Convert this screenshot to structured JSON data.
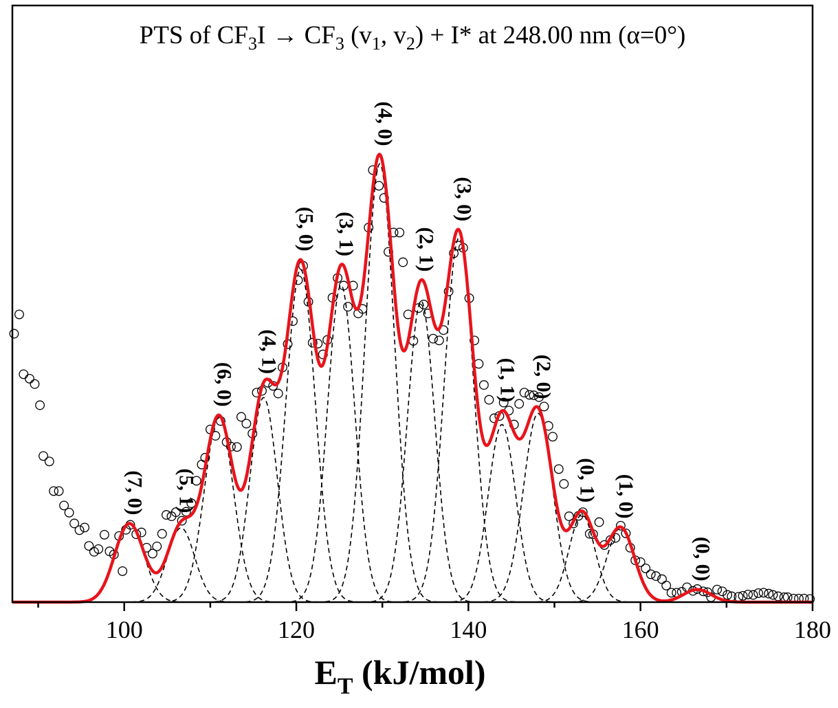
{
  "chart_data": {
    "type": "line",
    "title": {
      "prefix": "PTS  of   CF",
      "sub1": "3",
      "part2": "I",
      "arrow": "→",
      "part3": " CF",
      "sub2": "3",
      "part4": " (v",
      "sub3": "1",
      "part5": ", v",
      "sub4": "2",
      "part6": ") + I*  at 248.00 nm   (α=0°)"
    },
    "xlabel": {
      "main": "E",
      "sub": "T",
      "rest": " (kJ/mol)"
    },
    "ylabel": "",
    "xlim": [
      87,
      180
    ],
    "ylim": [
      0,
      1.0
    ],
    "x_ticks": [
      100,
      120,
      140,
      160,
      180
    ],
    "x_minor_step": 10,
    "y_ticks": [],
    "grid": false,
    "colors": {
      "fit": "#e8141b",
      "components": "#000000",
      "data": "#000000",
      "frame": "#000000"
    },
    "components": [
      {
        "label": "(7, 0)",
        "center": 100.6,
        "amp": 0.175,
        "sigma": 1.7
      },
      {
        "label": "(5, 1)",
        "center": 106.6,
        "amp": 0.165,
        "sigma": 1.6
      },
      {
        "label": "(6, 0)",
        "center": 111.0,
        "amp": 0.41,
        "sigma": 1.7
      },
      {
        "label": "(4, 1)",
        "center": 116.2,
        "amp": 0.455,
        "sigma": 1.6
      },
      {
        "label": "(5, 0)",
        "center": 120.5,
        "amp": 0.74,
        "sigma": 1.7
      },
      {
        "label": "(3, 1)",
        "center": 125.2,
        "amp": 0.705,
        "sigma": 1.6
      },
      {
        "label": "(4, 0)",
        "center": 129.7,
        "amp": 0.975,
        "sigma": 1.7
      },
      {
        "label": "(2, 1)",
        "center": 134.5,
        "amp": 0.67,
        "sigma": 1.6
      },
      {
        "label": "(3, 0)",
        "center": 138.9,
        "amp": 0.81,
        "sigma": 1.7
      },
      {
        "label": "(1, 1)",
        "center": 143.9,
        "amp": 0.395,
        "sigma": 1.6
      },
      {
        "label": "(2, 0)",
        "center": 148.1,
        "amp": 0.42,
        "sigma": 1.7
      },
      {
        "label": "(0, 1)",
        "center": 153.2,
        "amp": 0.195,
        "sigma": 1.5
      },
      {
        "label": "(1, 0)",
        "center": 157.7,
        "amp": 0.165,
        "sigma": 1.6
      },
      {
        "label": "(0, 0)",
        "center": 166.6,
        "amp": 0.028,
        "sigma": 1.6
      }
    ],
    "data_points": [
      [
        87.2,
        0.597
      ],
      [
        87.8,
        0.64
      ],
      [
        88.3,
        0.507
      ],
      [
        89.0,
        0.497
      ],
      [
        89.6,
        0.485
      ],
      [
        90.2,
        0.438
      ],
      [
        90.6,
        0.325
      ],
      [
        91.3,
        0.313
      ],
      [
        91.8,
        0.247
      ],
      [
        92.4,
        0.247
      ],
      [
        93.0,
        0.215
      ],
      [
        93.6,
        0.199
      ],
      [
        94.2,
        0.175
      ],
      [
        94.8,
        0.16
      ],
      [
        95.4,
        0.166
      ],
      [
        95.9,
        0.125
      ],
      [
        96.5,
        0.112
      ],
      [
        97.0,
        0.118
      ],
      [
        97.7,
        0.15
      ],
      [
        98.3,
        0.113
      ],
      [
        98.8,
        0.106
      ],
      [
        99.4,
        0.147
      ],
      [
        99.8,
        0.069
      ],
      [
        100.2,
        0.161
      ],
      [
        100.7,
        0.172
      ],
      [
        101.4,
        0.151
      ],
      [
        102.0,
        0.155
      ],
      [
        102.6,
        0.121
      ],
      [
        103.3,
        0.108
      ],
      [
        103.8,
        0.124
      ],
      [
        104.4,
        0.152
      ],
      [
        104.9,
        0.194
      ],
      [
        105.5,
        0.191
      ],
      [
        106.0,
        0.2
      ],
      [
        106.7,
        0.181
      ],
      [
        107.2,
        0.201
      ],
      [
        107.8,
        0.22
      ],
      [
        108.4,
        0.27
      ],
      [
        109.0,
        0.306
      ],
      [
        109.4,
        0.321
      ],
      [
        110.0,
        0.384
      ],
      [
        110.6,
        0.37
      ],
      [
        111.2,
        0.403
      ],
      [
        111.9,
        0.356
      ],
      [
        112.4,
        0.346
      ],
      [
        113.1,
        0.345
      ],
      [
        113.6,
        0.412
      ],
      [
        114.2,
        0.397
      ],
      [
        114.9,
        0.375
      ],
      [
        115.4,
        0.466
      ],
      [
        116.0,
        0.47
      ],
      [
        116.7,
        0.488
      ],
      [
        117.3,
        0.481
      ],
      [
        117.9,
        0.464
      ],
      [
        118.4,
        0.522
      ],
      [
        119.0,
        0.574
      ],
      [
        119.6,
        0.625
      ],
      [
        120.2,
        0.716
      ],
      [
        120.8,
        0.748
      ],
      [
        121.4,
        0.668
      ],
      [
        121.9,
        0.577
      ],
      [
        122.5,
        0.575
      ],
      [
        123.1,
        0.551
      ],
      [
        123.6,
        0.583
      ],
      [
        124.2,
        0.677
      ],
      [
        124.8,
        0.721
      ],
      [
        125.5,
        0.704
      ],
      [
        126.0,
        0.657
      ],
      [
        126.6,
        0.704
      ],
      [
        127.2,
        0.642
      ],
      [
        127.7,
        0.652
      ],
      [
        128.4,
        0.833
      ],
      [
        128.9,
        0.961
      ],
      [
        129.6,
        0.926
      ],
      [
        130.2,
        0.899
      ],
      [
        130.7,
        0.779
      ],
      [
        131.3,
        0.822
      ],
      [
        132.0,
        0.822
      ],
      [
        132.4,
        0.756
      ],
      [
        133.0,
        0.64
      ],
      [
        133.6,
        0.581
      ],
      [
        134.2,
        0.654
      ],
      [
        134.8,
        0.662
      ],
      [
        135.3,
        0.642
      ],
      [
        135.9,
        0.586
      ],
      [
        136.6,
        0.582
      ],
      [
        137.1,
        0.605
      ],
      [
        137.7,
        0.691
      ],
      [
        138.3,
        0.776
      ],
      [
        138.8,
        0.793
      ],
      [
        139.4,
        0.788
      ],
      [
        140.1,
        0.676
      ],
      [
        140.7,
        0.582
      ],
      [
        141.2,
        0.53
      ],
      [
        141.8,
        0.483
      ],
      [
        142.4,
        0.45
      ],
      [
        143.0,
        0.409
      ],
      [
        143.6,
        0.414
      ],
      [
        144.1,
        0.444
      ],
      [
        144.7,
        0.426
      ],
      [
        145.3,
        0.395
      ],
      [
        145.9,
        0.441
      ],
      [
        146.5,
        0.466
      ],
      [
        147.1,
        0.461
      ],
      [
        147.6,
        0.46
      ],
      [
        148.2,
        0.456
      ],
      [
        148.8,
        0.435
      ],
      [
        149.3,
        0.392
      ],
      [
        149.8,
        0.368
      ],
      [
        150.5,
        0.296
      ],
      [
        151.1,
        0.263
      ],
      [
        151.7,
        0.191
      ],
      [
        152.2,
        0.175
      ],
      [
        152.8,
        0.192
      ],
      [
        153.3,
        0.2
      ],
      [
        154.1,
        0.152
      ],
      [
        154.5,
        0.151
      ],
      [
        155.2,
        0.178
      ],
      [
        155.8,
        0.127
      ],
      [
        156.5,
        0.138
      ],
      [
        157.1,
        0.143
      ],
      [
        157.7,
        0.17
      ],
      [
        158.3,
        0.153
      ],
      [
        158.8,
        0.121
      ],
      [
        159.4,
        0.093
      ],
      [
        160.0,
        0.089
      ],
      [
        160.6,
        0.075
      ],
      [
        161.2,
        0.062
      ],
      [
        161.8,
        0.058
      ],
      [
        162.5,
        0.051
      ],
      [
        163.0,
        0.037
      ],
      [
        163.6,
        0.021
      ],
      [
        164.2,
        0.021
      ],
      [
        164.8,
        0.023
      ],
      [
        165.4,
        0.033
      ],
      [
        166.1,
        0.025
      ],
      [
        166.6,
        0.029
      ],
      [
        167.3,
        0.024
      ],
      [
        167.8,
        0.022
      ],
      [
        168.2,
        0.011
      ],
      [
        168.9,
        0.028
      ],
      [
        169.5,
        0.024
      ],
      [
        170.1,
        0.016
      ],
      [
        170.6,
        0.013
      ],
      [
        171.4,
        0.012
      ],
      [
        171.9,
        0.014
      ],
      [
        172.5,
        0.017
      ],
      [
        173.1,
        0.016
      ],
      [
        173.7,
        0.02
      ],
      [
        174.3,
        0.021
      ],
      [
        174.9,
        0.019
      ],
      [
        175.4,
        0.016
      ],
      [
        176.0,
        0.013
      ],
      [
        176.7,
        0.011
      ],
      [
        177.1,
        0.011
      ],
      [
        177.8,
        0.008
      ],
      [
        178.4,
        0.008
      ],
      [
        179.0,
        0.008
      ],
      [
        179.7,
        0.007
      ]
    ]
  }
}
